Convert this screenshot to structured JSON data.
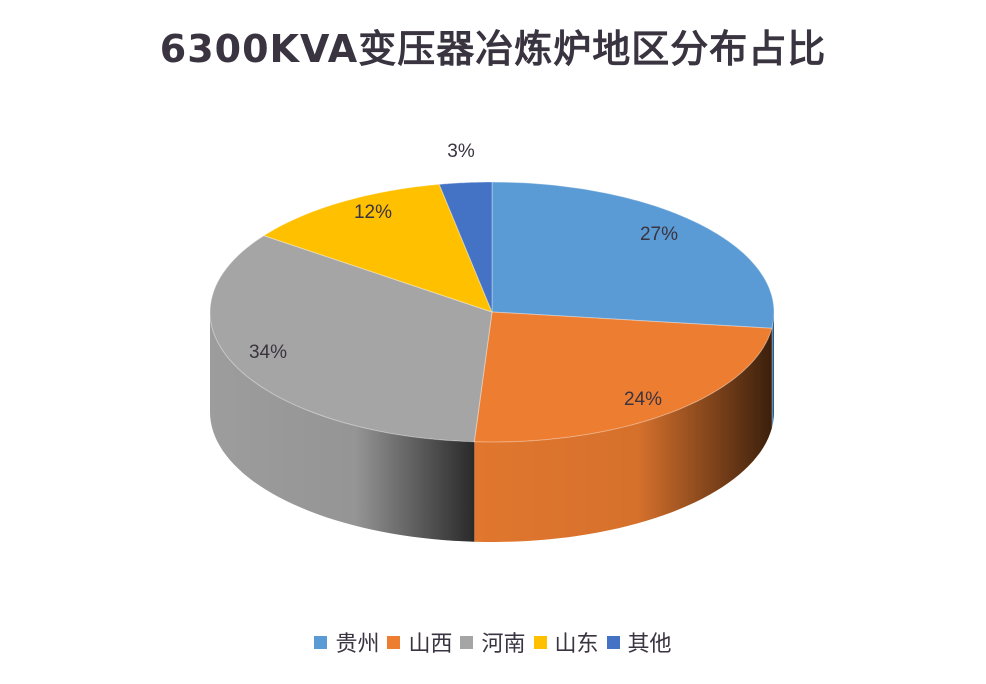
{
  "chart_data": {
    "type": "pie",
    "style": "3d",
    "title": "6300KVA变压器冶炼炉地区分布占比",
    "categories": [
      "贵州",
      "山西",
      "河南",
      "山东",
      "其他"
    ],
    "values": [
      27,
      24,
      34,
      12,
      3
    ],
    "labels": [
      "27%",
      "24%",
      "34%",
      "12%",
      "3%"
    ],
    "colors": [
      "#5b9bd5",
      "#ed7d31",
      "#a5a5a5",
      "#ffc000",
      "#4472c4"
    ],
    "start_angle": "12 o'clock, clockwise",
    "legend_position": "bottom"
  },
  "legend": [
    {
      "label": "贵州",
      "color": "#5b9bd5"
    },
    {
      "label": "山西",
      "color": "#ed7d31"
    },
    {
      "label": "河南",
      "color": "#a5a5a5"
    },
    {
      "label": "山东",
      "color": "#ffc000"
    },
    {
      "label": "其他",
      "color": "#4472c4"
    }
  ]
}
